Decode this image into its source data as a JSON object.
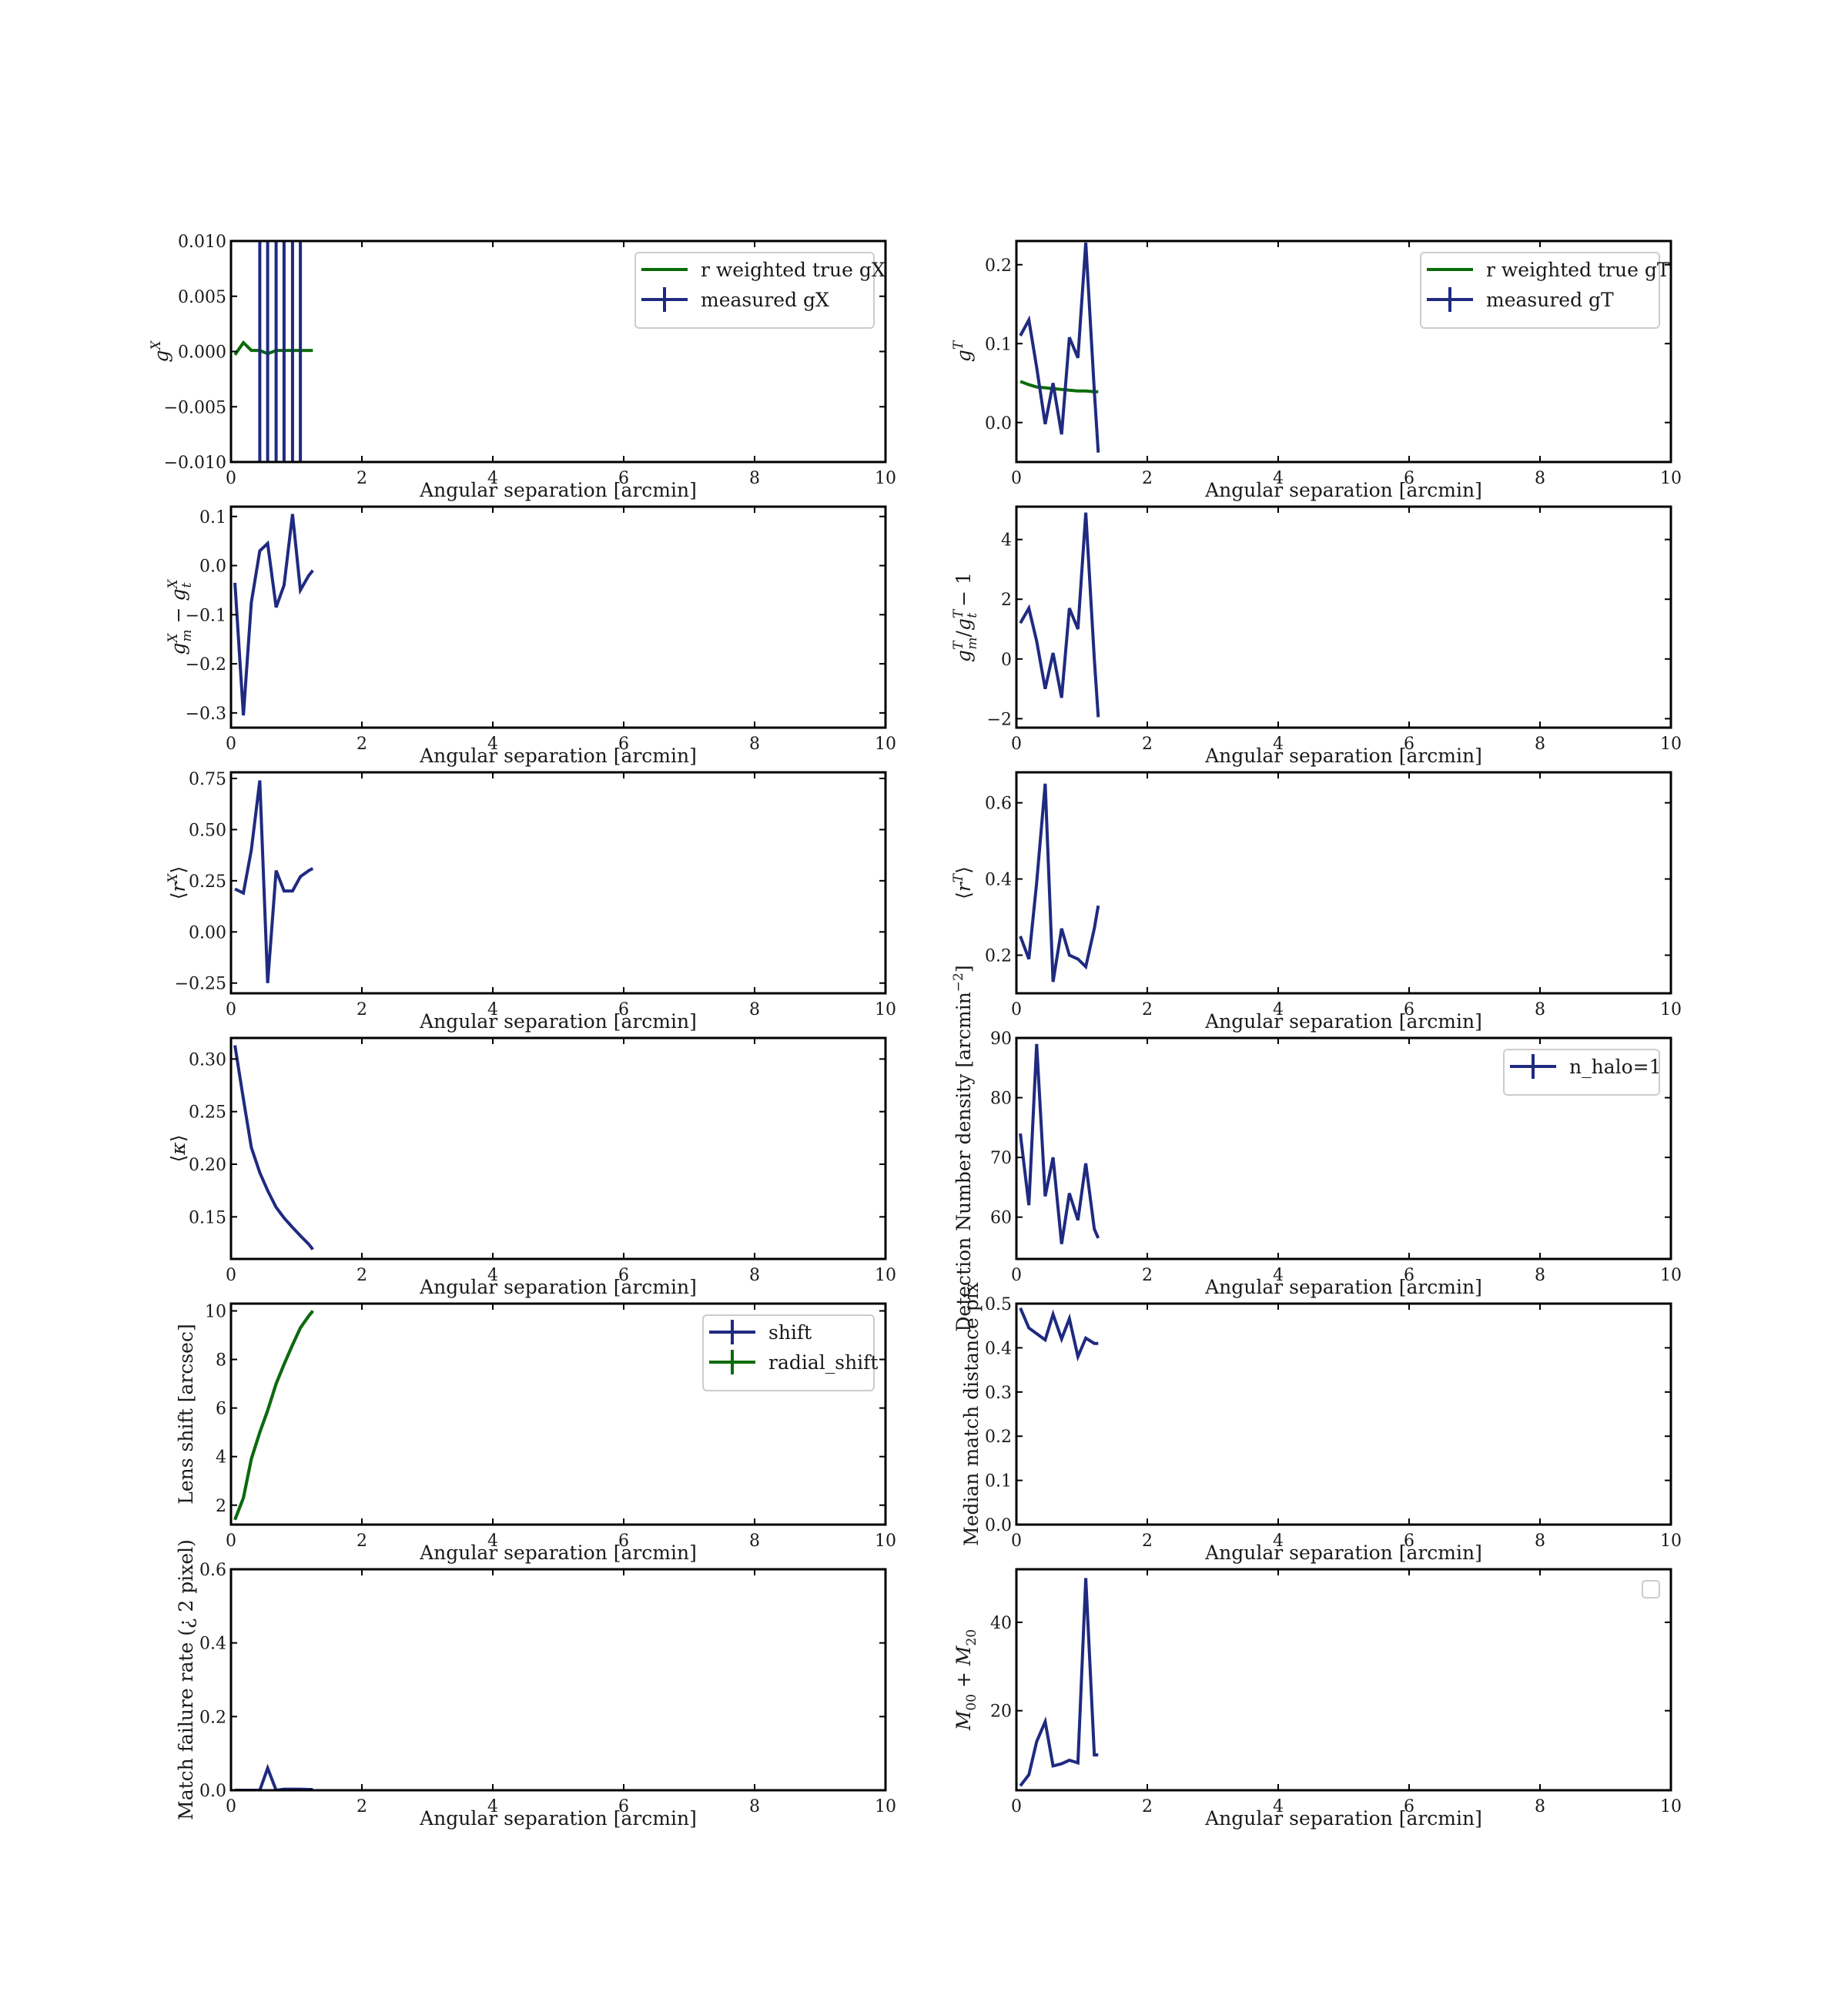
{
  "colors": {
    "navy": "#1f2a80",
    "green": "#0b6b0b",
    "frame": "#000000"
  },
  "chart_data": [
    {
      "type": "line",
      "xlabel": "Angular separation [arcmin]",
      "ylabel": "gX",
      "ylabel_parts": {
        "base": "g",
        "sup": "X"
      },
      "xlim": [
        0,
        10
      ],
      "ylim": [
        -0.01,
        0.01
      ],
      "xticks": [
        "0",
        "2",
        "4",
        "6",
        "8",
        "10"
      ],
      "yticks": [
        -0.01,
        -0.005,
        0,
        0.005,
        0.01
      ],
      "ytick_labels": [
        "−0.010",
        "−0.005",
        "0.000",
        "0.005",
        "0.010"
      ],
      "legend": {
        "placement": "top-right"
      },
      "series": [
        {
          "name": "r weighted true gX",
          "color": "#0b6b0b",
          "legend_marker": "line",
          "x": [
            0.06,
            0.19,
            0.31,
            0.44,
            0.56,
            0.69,
            0.81,
            0.94,
            1.06,
            1.19,
            1.25
          ],
          "y": [
            -0.0003,
            0.0008,
            0.0001,
            0.0001,
            -0.0002,
            0.0001,
            0.0001,
            0.0001,
            0.0001,
            0.0001,
            0.0001
          ]
        },
        {
          "name": "measured gX",
          "color": "#1f2a80",
          "legend_marker": "errorbar",
          "x": [
            0.44,
            0.44,
            0.56,
            0.56,
            0.69,
            0.69,
            0.81,
            0.81,
            0.94,
            0.94,
            1.06,
            1.06
          ],
          "y": [
            -0.012,
            0.012,
            0.012,
            -0.012,
            -0.012,
            0.012,
            0.012,
            -0.012,
            -0.012,
            0.012,
            0.012,
            -0.012
          ]
        }
      ]
    },
    {
      "type": "line",
      "xlabel": "Angular separation [arcmin]",
      "ylabel": "gT",
      "ylabel_parts": {
        "base": "g",
        "sup": "T"
      },
      "xlim": [
        0,
        10
      ],
      "ylim": [
        -0.05,
        0.23
      ],
      "xticks": [
        "0",
        "2",
        "4",
        "6",
        "8",
        "10"
      ],
      "yticks": [
        0,
        0.1,
        0.2
      ],
      "ytick_labels": [
        "0.0",
        "0.1",
        "0.2"
      ],
      "legend": {
        "placement": "top-right"
      },
      "series": [
        {
          "name": "r weighted true gT",
          "color": "#0b6b0b",
          "legend_marker": "line",
          "x": [
            0.06,
            0.19,
            0.31,
            0.44,
            0.56,
            0.69,
            0.81,
            0.94,
            1.06,
            1.19,
            1.25
          ],
          "y": [
            0.052,
            0.048,
            0.045,
            0.044,
            0.043,
            0.042,
            0.041,
            0.04,
            0.04,
            0.039,
            0.039
          ]
        },
        {
          "name": "measured gT",
          "color": "#1f2a80",
          "legend_marker": "errorbar",
          "x": [
            0.06,
            0.19,
            0.31,
            0.44,
            0.56,
            0.69,
            0.81,
            0.94,
            1.06,
            1.19,
            1.25
          ],
          "y": [
            0.11,
            0.13,
            0.07,
            -0.002,
            0.05,
            -0.015,
            0.108,
            0.082,
            0.228,
            0.04,
            -0.038
          ]
        }
      ]
    },
    {
      "type": "line",
      "xlabel": "Angular separation [arcmin]",
      "ylabel": "gXm − gXt",
      "xlim": [
        0,
        10
      ],
      "ylim": [
        -0.33,
        0.12
      ],
      "xticks": [
        "0",
        "2",
        "4",
        "6",
        "8",
        "10"
      ],
      "yticks": [
        -0.3,
        -0.2,
        -0.1,
        0,
        0.1
      ],
      "ytick_labels": [
        "−0.3",
        "−0.2",
        "−0.1",
        "0.0",
        "0.1"
      ],
      "series": [
        {
          "color": "#1f2a80",
          "x": [
            0.06,
            0.19,
            0.31,
            0.44,
            0.56,
            0.69,
            0.81,
            0.94,
            1.06,
            1.19,
            1.25
          ],
          "y": [
            -0.035,
            -0.305,
            -0.075,
            0.03,
            0.045,
            -0.085,
            -0.04,
            0.105,
            -0.05,
            -0.02,
            -0.01
          ]
        }
      ]
    },
    {
      "type": "line",
      "xlabel": "Angular separation [arcmin]",
      "ylabel": "gTm/gTt − 1",
      "xlim": [
        0,
        10
      ],
      "ylim": [
        -2.3,
        5.1
      ],
      "xticks": [
        "0",
        "2",
        "4",
        "6",
        "8",
        "10"
      ],
      "yticks": [
        -2,
        0,
        2,
        4
      ],
      "ytick_labels": [
        "−2",
        "0",
        "2",
        "4"
      ],
      "series": [
        {
          "color": "#1f2a80",
          "x": [
            0.06,
            0.19,
            0.31,
            0.44,
            0.56,
            0.69,
            0.81,
            0.94,
            1.06,
            1.19,
            1.25
          ],
          "y": [
            1.2,
            1.7,
            0.6,
            -1.0,
            0.2,
            -1.3,
            1.7,
            1.0,
            4.9,
            0.0,
            -1.95
          ]
        }
      ]
    },
    {
      "type": "line",
      "xlabel": "Angular separation [arcmin]",
      "ylabel": "⟨rX⟩",
      "ylabel_parts": {
        "base": "r",
        "sup": "X",
        "angle": true
      },
      "xlim": [
        0,
        10
      ],
      "ylim": [
        -0.3,
        0.78
      ],
      "xticks": [
        "0",
        "2",
        "4",
        "6",
        "8",
        "10"
      ],
      "yticks": [
        -0.25,
        0,
        0.25,
        0.5,
        0.75
      ],
      "ytick_labels": [
        "−0.25",
        "0.00",
        "0.25",
        "0.50",
        "0.75"
      ],
      "series": [
        {
          "color": "#1f2a80",
          "x": [
            0.06,
            0.19,
            0.31,
            0.44,
            0.56,
            0.69,
            0.81,
            0.94,
            1.06,
            1.19,
            1.25
          ],
          "y": [
            0.21,
            0.19,
            0.4,
            0.74,
            -0.25,
            0.3,
            0.2,
            0.2,
            0.27,
            0.3,
            0.31
          ]
        }
      ]
    },
    {
      "type": "line",
      "xlabel": "Angular separation [arcmin]",
      "ylabel": "⟨rT⟩",
      "ylabel_parts": {
        "base": "r",
        "sup": "T",
        "angle": true
      },
      "xlim": [
        0,
        10
      ],
      "ylim": [
        0.1,
        0.68
      ],
      "xticks": [
        "0",
        "2",
        "4",
        "6",
        "8",
        "10"
      ],
      "yticks": [
        0.2,
        0.4,
        0.6
      ],
      "ytick_labels": [
        "0.2",
        "0.4",
        "0.6"
      ],
      "series": [
        {
          "color": "#1f2a80",
          "x": [
            0.06,
            0.19,
            0.31,
            0.44,
            0.56,
            0.69,
            0.81,
            0.94,
            1.06,
            1.19,
            1.25
          ],
          "y": [
            0.25,
            0.19,
            0.39,
            0.65,
            0.13,
            0.27,
            0.2,
            0.19,
            0.17,
            0.27,
            0.33
          ]
        }
      ]
    },
    {
      "type": "line",
      "xlabel": "Angular separation [arcmin]",
      "ylabel": "⟨κ⟩",
      "xlim": [
        0,
        10
      ],
      "ylim": [
        0.11,
        0.32
      ],
      "xticks": [
        "0",
        "2",
        "4",
        "6",
        "8",
        "10"
      ],
      "yticks": [
        0.15,
        0.2,
        0.25,
        0.3
      ],
      "ytick_labels": [
        "0.15",
        "0.20",
        "0.25",
        "0.30"
      ],
      "series": [
        {
          "color": "#1f2a80",
          "x": [
            0.06,
            0.19,
            0.31,
            0.44,
            0.56,
            0.69,
            0.81,
            0.94,
            1.06,
            1.19,
            1.25
          ],
          "y": [
            0.313,
            0.262,
            0.216,
            0.192,
            0.175,
            0.159,
            0.149,
            0.14,
            0.132,
            0.124,
            0.119
          ]
        }
      ]
    },
    {
      "type": "line",
      "xlabel": "Angular separation [arcmin]",
      "ylabel": "Detection Number density [arcmin−2]",
      "xlim": [
        0,
        10
      ],
      "ylim": [
        53,
        90
      ],
      "xticks": [
        "0",
        "2",
        "4",
        "6",
        "8",
        "10"
      ],
      "yticks": [
        60,
        70,
        80,
        90
      ],
      "ytick_labels": [
        "60",
        "70",
        "80",
        "90"
      ],
      "legend": {
        "placement": "top-right"
      },
      "series": [
        {
          "name": "n_halo=1",
          "color": "#1f2a80",
          "legend_marker": "errorbar",
          "x": [
            0.06,
            0.19,
            0.31,
            0.44,
            0.56,
            0.69,
            0.81,
            0.94,
            1.06,
            1.19,
            1.25
          ],
          "y": [
            74,
            62,
            89,
            63.5,
            70,
            55.5,
            64,
            59.5,
            69,
            58,
            56.5
          ]
        }
      ]
    },
    {
      "type": "line",
      "xlabel": "Angular separation [arcmin]",
      "ylabel": "Lens shift [arcsec]",
      "xlim": [
        0,
        10
      ],
      "ylim": [
        1.2,
        10.3
      ],
      "xticks": [
        "0",
        "2",
        "4",
        "6",
        "8",
        "10"
      ],
      "yticks": [
        2,
        4,
        6,
        8,
        10
      ],
      "ytick_labels": [
        "2",
        "4",
        "6",
        "8",
        "10"
      ],
      "legend": {
        "placement": "top-right"
      },
      "series": [
        {
          "name": "shift",
          "color": "#1f2a80",
          "legend_marker": "errorbar",
          "x": [
            0.06,
            0.19,
            0.31,
            0.44,
            0.56,
            0.69,
            0.81,
            0.94,
            1.06,
            1.19,
            1.25
          ],
          "y": [
            1.4,
            2.3,
            3.9,
            5.0,
            5.9,
            7.0,
            7.8,
            8.6,
            9.3,
            9.8,
            10.0
          ]
        },
        {
          "name": "radial_shift",
          "color": "#0b6b0b",
          "legend_marker": "errorbar",
          "x": [
            0.06,
            0.19,
            0.31,
            0.44,
            0.56,
            0.69,
            0.81,
            0.94,
            1.06,
            1.19,
            1.25
          ],
          "y": [
            1.4,
            2.3,
            3.9,
            5.0,
            5.9,
            7.0,
            7.8,
            8.6,
            9.3,
            9.8,
            10.0
          ]
        }
      ]
    },
    {
      "type": "line",
      "xlabel": "Angular separation [arcmin]",
      "ylabel": "Median match distance pix",
      "xlim": [
        0,
        10
      ],
      "ylim": [
        0,
        0.5
      ],
      "xticks": [
        "0",
        "2",
        "4",
        "6",
        "8",
        "10"
      ],
      "yticks": [
        0,
        0.1,
        0.2,
        0.3,
        0.4,
        0.5
      ],
      "ytick_labels": [
        "0.0",
        "0.1",
        "0.2",
        "0.3",
        "0.4",
        "0.5"
      ],
      "series": [
        {
          "color": "#1f2a80",
          "x": [
            0.06,
            0.19,
            0.31,
            0.44,
            0.56,
            0.69,
            0.81,
            0.94,
            1.06,
            1.19,
            1.25
          ],
          "y": [
            0.49,
            0.445,
            0.432,
            0.418,
            0.476,
            0.42,
            0.466,
            0.38,
            0.422,
            0.41,
            0.41
          ]
        }
      ]
    },
    {
      "type": "line",
      "xlabel": "Angular separation [arcmin]",
      "ylabel": "Match failure rate (¿ 2 pixel)",
      "xlim": [
        0,
        10
      ],
      "ylim": [
        0,
        0.6
      ],
      "xticks": [
        "0",
        "2",
        "4",
        "6",
        "8",
        "10"
      ],
      "yticks": [
        0,
        0.2,
        0.4,
        0.6
      ],
      "ytick_labels": [
        "0.0",
        "0.2",
        "0.4",
        "0.6"
      ],
      "series": [
        {
          "color": "#1f2a80",
          "x": [
            0.06,
            0.19,
            0.31,
            0.44,
            0.56,
            0.69,
            0.81,
            0.94,
            1.06,
            1.19,
            1.25
          ],
          "y": [
            0.0,
            0.0,
            0.0,
            0.0,
            0.06,
            0.0,
            0.003,
            0.003,
            0.003,
            0.002,
            0.002
          ]
        }
      ]
    },
    {
      "type": "line",
      "xlabel": "Angular separation [arcmin]",
      "ylabel": "M00 + M20",
      "xlim": [
        0,
        10
      ],
      "ylim": [
        2,
        52
      ],
      "xticks": [
        "0",
        "2",
        "4",
        "6",
        "8",
        "10"
      ],
      "yticks": [
        20,
        40
      ],
      "ytick_labels": [
        "20",
        "40"
      ],
      "legend": {
        "placement": "top-right",
        "empty": true
      },
      "series": [
        {
          "color": "#1f2a80",
          "x": [
            0.06,
            0.19,
            0.31,
            0.44,
            0.56,
            0.69,
            0.81,
            0.94,
            1.06,
            1.19,
            1.25
          ],
          "y": [
            3,
            5.5,
            13,
            17.5,
            7.5,
            8,
            8.8,
            8.2,
            50,
            10,
            10
          ]
        }
      ]
    }
  ]
}
